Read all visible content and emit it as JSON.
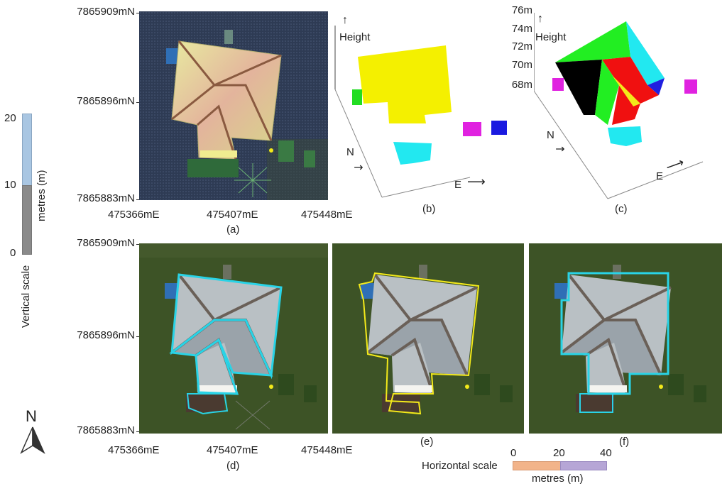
{
  "panel_labels": {
    "a": "(a)",
    "b": "(b)",
    "c": "(c)",
    "d": "(d)",
    "e": "(e)",
    "f": "(f)"
  },
  "axes_top": {
    "y_labels": [
      "7865909mN",
      "7865896mN",
      "7865883mN"
    ],
    "x_labels": [
      "475366mE",
      "475407mE",
      "475448mE"
    ]
  },
  "axes_bottom": {
    "y_labels": [
      "7865909mN",
      "7865896mN",
      "7865883mN"
    ],
    "x_labels": [
      "475366mE",
      "475407mE",
      "475448mE"
    ]
  },
  "panel_b": {
    "height_label": "Height",
    "north": "N",
    "east": "E"
  },
  "panel_c": {
    "height_label": "Height",
    "north": "N",
    "east": "E",
    "ticks": [
      "76m",
      "74m",
      "72m",
      "70m",
      "68m"
    ]
  },
  "vertical_scale": {
    "title": "Vertical scale",
    "unit": "metres (m)",
    "ticks": [
      "20",
      "10",
      "0"
    ],
    "colors": {
      "upper": "#a9c6e2",
      "lower": "#8a8a8a"
    }
  },
  "horizontal_scale": {
    "title": "Horizontal scale",
    "unit": "metres (m)",
    "ticks": [
      "0",
      "20",
      "40"
    ],
    "colors": {
      "left": "#f2b48a",
      "right": "#b6a6d6"
    }
  },
  "north_arrow": {
    "label": "N",
    "icon": "north-arrow-icon"
  },
  "colors": {
    "roof_cyan": "#29d3e6",
    "roof_yellow": "#f3e91a",
    "grass": "#3d5326",
    "roof": "#b9c0c4"
  }
}
